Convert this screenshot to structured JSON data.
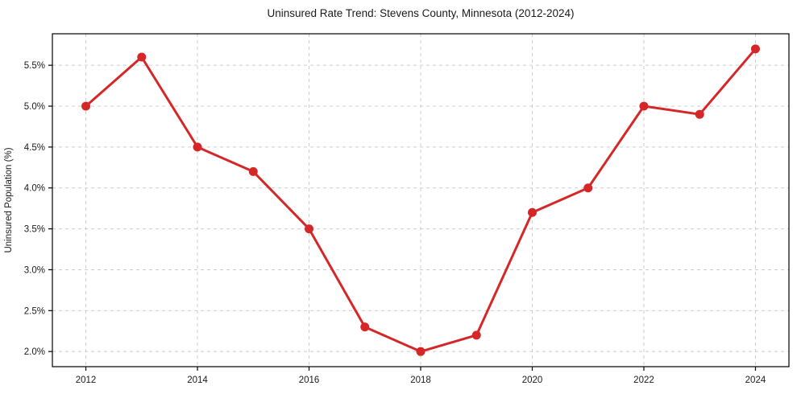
{
  "chart_data": {
    "type": "line",
    "title": "Uninsured Rate Trend: Stevens County, Minnesota (2012-2024)",
    "xlabel": "",
    "ylabel": "Uninsured Population (%)",
    "x": [
      2012,
      2013,
      2014,
      2015,
      2016,
      2017,
      2018,
      2019,
      2020,
      2021,
      2022,
      2023,
      2024
    ],
    "series": [
      {
        "name": "Uninsured Rate",
        "values": [
          5.0,
          5.6,
          4.5,
          4.2,
          3.5,
          2.3,
          2.0,
          2.2,
          3.7,
          4.0,
          5.0,
          4.9,
          5.7
        ]
      }
    ],
    "xlim": [
      2011.4,
      2024.6
    ],
    "ylim": [
      1.815,
      5.885
    ],
    "xtick_values": [
      2012,
      2014,
      2016,
      2018,
      2020,
      2022,
      2024
    ],
    "xtick_labels": [
      "2012",
      "2014",
      "2016",
      "2018",
      "2020",
      "2022",
      "2024"
    ],
    "ytick_values": [
      2.0,
      2.5,
      3.0,
      3.5,
      4.0,
      4.5,
      5.0,
      5.5
    ],
    "ytick_labels": [
      "2.0%",
      "2.5%",
      "3.0%",
      "3.5%",
      "4.0%",
      "4.5%",
      "5.0%",
      "5.5%"
    ],
    "grid": true,
    "legend": "none",
    "marker": "circle",
    "colors": {
      "line": "#d62728",
      "marker": "#d62728",
      "grid": "#cccccc",
      "axis": "#000000",
      "text": "#1a1a1a",
      "background": "#ffffff"
    }
  }
}
